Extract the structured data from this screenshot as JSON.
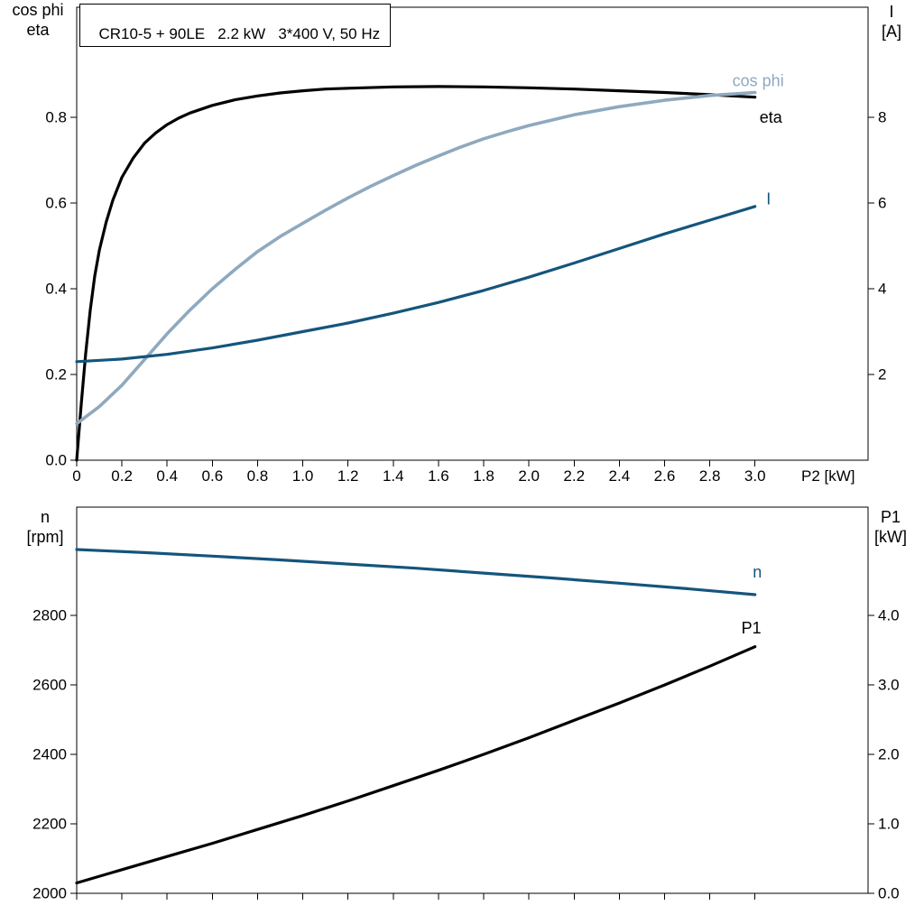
{
  "colors": {
    "black": "#000000",
    "lightblue": "#8FA9BE",
    "darkblue": "#14557C"
  },
  "chart_data": [
    {
      "id": "top",
      "type": "line",
      "title": "CR10-5 + 90LE   2.2 kW   3*400 V, 50 Hz",
      "xlabel": "P2 [kW]",
      "x_range": [
        0,
        3.5
      ],
      "y_left_range": [
        0,
        1.057
      ],
      "y_right_range": [
        0,
        10.57
      ],
      "grid": false,
      "left_axis_title": {
        "line1": "cos phi",
        "line2": "eta"
      },
      "right_axis_title": {
        "line1": "I",
        "line2": "[A]"
      },
      "x_ticks": [
        {
          "v": 0,
          "label": "0"
        },
        {
          "v": 0.2,
          "label": "0.2"
        },
        {
          "v": 0.4,
          "label": "0.4"
        },
        {
          "v": 0.6,
          "label": "0.6"
        },
        {
          "v": 0.8,
          "label": "0.8"
        },
        {
          "v": 1.0,
          "label": "1.0"
        },
        {
          "v": 1.2,
          "label": "1.2"
        },
        {
          "v": 1.4,
          "label": "1.4"
        },
        {
          "v": 1.6,
          "label": "1.6"
        },
        {
          "v": 1.8,
          "label": "1.8"
        },
        {
          "v": 2.0,
          "label": "2.0"
        },
        {
          "v": 2.2,
          "label": "2.2"
        },
        {
          "v": 2.4,
          "label": "2.4"
        },
        {
          "v": 2.6,
          "label": "2.6"
        },
        {
          "v": 2.8,
          "label": "2.8"
        },
        {
          "v": 3.0,
          "label": "3.0"
        }
      ],
      "left_ticks": [
        {
          "v": 0.0,
          "label": "0.0"
        },
        {
          "v": 0.2,
          "label": "0.2"
        },
        {
          "v": 0.4,
          "label": "0.4"
        },
        {
          "v": 0.6,
          "label": "0.6"
        },
        {
          "v": 0.8,
          "label": "0.8"
        }
      ],
      "right_ticks": [
        {
          "v": 2,
          "label": "2"
        },
        {
          "v": 4,
          "label": "4"
        },
        {
          "v": 6,
          "label": "6"
        },
        {
          "v": 8,
          "label": "8"
        }
      ],
      "series": [
        {
          "name": "eta",
          "label": "eta",
          "axis": "left",
          "color_key": "black",
          "width": 3.2,
          "label_pos": {
            "x": 3.02,
            "y": 0.8
          },
          "points": [
            [
              0,
              0
            ],
            [
              0.02,
              0.13
            ],
            [
              0.04,
              0.25
            ],
            [
              0.06,
              0.35
            ],
            [
              0.08,
              0.43
            ],
            [
              0.1,
              0.49
            ],
            [
              0.13,
              0.555
            ],
            [
              0.16,
              0.607
            ],
            [
              0.2,
              0.66
            ],
            [
              0.25,
              0.705
            ],
            [
              0.3,
              0.74
            ],
            [
              0.35,
              0.764
            ],
            [
              0.4,
              0.783
            ],
            [
              0.45,
              0.798
            ],
            [
              0.5,
              0.81
            ],
            [
              0.6,
              0.828
            ],
            [
              0.7,
              0.841
            ],
            [
              0.8,
              0.85
            ],
            [
              0.9,
              0.857
            ],
            [
              1.0,
              0.862
            ],
            [
              1.1,
              0.866
            ],
            [
              1.2,
              0.868
            ],
            [
              1.4,
              0.871
            ],
            [
              1.6,
              0.872
            ],
            [
              1.8,
              0.871
            ],
            [
              2.0,
              0.869
            ],
            [
              2.2,
              0.866
            ],
            [
              2.4,
              0.862
            ],
            [
              2.6,
              0.858
            ],
            [
              2.8,
              0.853
            ],
            [
              3.0,
              0.847
            ]
          ]
        },
        {
          "name": "cos-phi",
          "label": "cos phi",
          "axis": "left",
          "color_key": "lightblue",
          "width": 3.6,
          "label_pos": {
            "x": 2.9,
            "y": 0.885
          },
          "points": [
            [
              0,
              0.085
            ],
            [
              0.1,
              0.125
            ],
            [
              0.2,
              0.175
            ],
            [
              0.3,
              0.235
            ],
            [
              0.4,
              0.295
            ],
            [
              0.5,
              0.35
            ],
            [
              0.6,
              0.4
            ],
            [
              0.7,
              0.445
            ],
            [
              0.8,
              0.487
            ],
            [
              0.9,
              0.522
            ],
            [
              1.0,
              0.553
            ],
            [
              1.1,
              0.583
            ],
            [
              1.2,
              0.612
            ],
            [
              1.3,
              0.639
            ],
            [
              1.4,
              0.664
            ],
            [
              1.5,
              0.688
            ],
            [
              1.6,
              0.71
            ],
            [
              1.7,
              0.731
            ],
            [
              1.8,
              0.75
            ],
            [
              1.9,
              0.766
            ],
            [
              2.0,
              0.781
            ],
            [
              2.2,
              0.806
            ],
            [
              2.4,
              0.825
            ],
            [
              2.6,
              0.84
            ],
            [
              2.8,
              0.851
            ],
            [
              3.0,
              0.858
            ]
          ]
        },
        {
          "name": "current",
          "label": "I",
          "axis": "right",
          "color_key": "darkblue",
          "width": 3.2,
          "label_pos": {
            "x": 3.05,
            "y": 6.1
          },
          "points": [
            [
              0,
              2.3
            ],
            [
              0.2,
              2.36
            ],
            [
              0.4,
              2.47
            ],
            [
              0.6,
              2.62
            ],
            [
              0.8,
              2.8
            ],
            [
              1.0,
              3.0
            ],
            [
              1.2,
              3.2
            ],
            [
              1.4,
              3.43
            ],
            [
              1.6,
              3.68
            ],
            [
              1.8,
              3.96
            ],
            [
              2.0,
              4.27
            ],
            [
              2.2,
              4.6
            ],
            [
              2.4,
              4.94
            ],
            [
              2.6,
              5.28
            ],
            [
              2.8,
              5.6
            ],
            [
              3.0,
              5.92
            ]
          ]
        }
      ]
    },
    {
      "id": "bottom",
      "type": "line",
      "title": "",
      "xlabel": "",
      "x_range": [
        0,
        3.5
      ],
      "y_left_range": [
        2000,
        3112
      ],
      "y_right_range": [
        0,
        5.56
      ],
      "grid": false,
      "left_axis_title": {
        "line1": "n",
        "line2": "[rpm]"
      },
      "right_axis_title": {
        "line1": "P1",
        "line2": "[kW]"
      },
      "x_ticks": [
        {
          "v": 0,
          "label": ""
        },
        {
          "v": 0.2,
          "label": ""
        },
        {
          "v": 0.4,
          "label": ""
        },
        {
          "v": 0.6,
          "label": ""
        },
        {
          "v": 0.8,
          "label": ""
        },
        {
          "v": 1.0,
          "label": ""
        },
        {
          "v": 1.2,
          "label": ""
        },
        {
          "v": 1.4,
          "label": ""
        },
        {
          "v": 1.6,
          "label": ""
        },
        {
          "v": 1.8,
          "label": ""
        },
        {
          "v": 2.0,
          "label": ""
        },
        {
          "v": 2.2,
          "label": ""
        },
        {
          "v": 2.4,
          "label": ""
        },
        {
          "v": 2.6,
          "label": ""
        },
        {
          "v": 2.8,
          "label": ""
        },
        {
          "v": 3.0,
          "label": ""
        }
      ],
      "left_ticks": [
        {
          "v": 2000,
          "label": "2000"
        },
        {
          "v": 2200,
          "label": "2200"
        },
        {
          "v": 2400,
          "label": "2400"
        },
        {
          "v": 2600,
          "label": "2600"
        },
        {
          "v": 2800,
          "label": "2800"
        }
      ],
      "right_ticks": [
        {
          "v": 0,
          "label": "0.0"
        },
        {
          "v": 1,
          "label": "1.0"
        },
        {
          "v": 2,
          "label": "2.0"
        },
        {
          "v": 3,
          "label": "3.0"
        },
        {
          "v": 4,
          "label": "4.0"
        }
      ],
      "series": [
        {
          "name": "speed",
          "label": "n",
          "axis": "left",
          "color_key": "darkblue",
          "width": 3.2,
          "label_pos": {
            "x": 2.99,
            "y": 2925
          },
          "points": [
            [
              0,
              2990
            ],
            [
              0.3,
              2981
            ],
            [
              0.6,
              2971
            ],
            [
              0.9,
              2960
            ],
            [
              1.2,
              2948
            ],
            [
              1.5,
              2936
            ],
            [
              1.8,
              2922
            ],
            [
              2.1,
              2908
            ],
            [
              2.4,
              2893
            ],
            [
              2.7,
              2877
            ],
            [
              3.0,
              2860
            ]
          ]
        },
        {
          "name": "p1",
          "label": "P1",
          "axis": "right",
          "color_key": "black",
          "width": 3.2,
          "label_pos": {
            "x": 2.94,
            "y": 3.82
          },
          "points": [
            [
              0,
              0.15
            ],
            [
              0.2,
              0.34
            ],
            [
              0.4,
              0.53
            ],
            [
              0.6,
              0.72
            ],
            [
              0.8,
              0.92
            ],
            [
              1.0,
              1.12
            ],
            [
              1.2,
              1.33
            ],
            [
              1.4,
              1.55
            ],
            [
              1.6,
              1.77
            ],
            [
              1.8,
              2.0
            ],
            [
              2.0,
              2.24
            ],
            [
              2.2,
              2.49
            ],
            [
              2.4,
              2.74
            ],
            [
              2.6,
              3.0
            ],
            [
              2.8,
              3.27
            ],
            [
              3.0,
              3.55
            ]
          ]
        }
      ]
    }
  ]
}
